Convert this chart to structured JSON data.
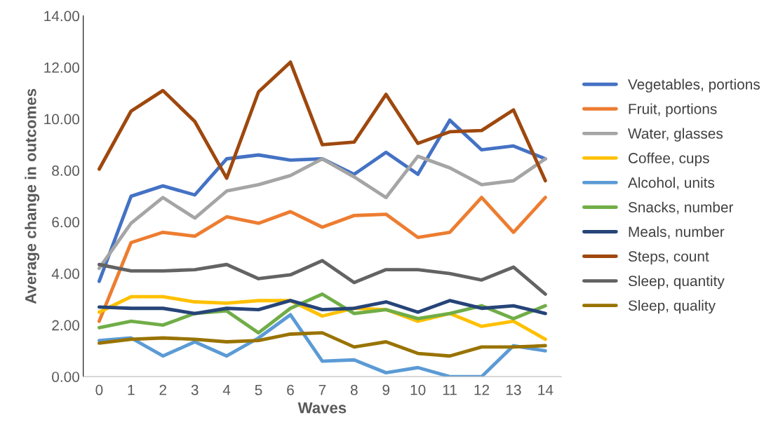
{
  "chart_data": {
    "type": "line",
    "xlabel": "Waves",
    "ylabel": "Average change in outcomes",
    "categories": [
      "0",
      "1",
      "2",
      "3",
      "4",
      "5",
      "6",
      "7",
      "8",
      "9",
      "10",
      "11",
      "12",
      "13",
      "14"
    ],
    "ylim": [
      0,
      14
    ],
    "yticks": [
      {
        "value": 0,
        "label": "0.00"
      },
      {
        "value": 2,
        "label": "2.00"
      },
      {
        "value": 4,
        "label": "4.00"
      },
      {
        "value": 6,
        "label": "6.00"
      },
      {
        "value": 8,
        "label": "8.00"
      },
      {
        "value": 10,
        "label": "10.00"
      },
      {
        "value": 12,
        "label": "12.00"
      },
      {
        "value": 14,
        "label": "14.00"
      }
    ],
    "legend": "right",
    "marker": "none",
    "line_style": "solid",
    "series": [
      {
        "name": "Vegetables, portions",
        "color": "#4472c4",
        "values": [
          3.7,
          7.0,
          7.4,
          7.05,
          8.45,
          8.6,
          8.4,
          8.45,
          7.85,
          8.7,
          7.85,
          9.95,
          8.8,
          8.95,
          8.45
        ]
      },
      {
        "name": "Fruit, portions",
        "color": "#ed7d31",
        "values": [
          2.15,
          5.2,
          5.6,
          5.45,
          6.2,
          5.95,
          6.4,
          5.8,
          6.25,
          6.3,
          5.4,
          5.6,
          6.95,
          5.6,
          6.95
        ]
      },
      {
        "name": "Water, glasses",
        "color": "#a5a5a5",
        "values": [
          4.2,
          5.95,
          6.95,
          6.15,
          7.2,
          7.45,
          7.8,
          8.45,
          7.75,
          6.95,
          8.55,
          8.1,
          7.45,
          7.6,
          8.45
        ]
      },
      {
        "name": "Coffee, cups",
        "color": "#ffc000",
        "values": [
          2.5,
          3.1,
          3.1,
          2.9,
          2.85,
          2.95,
          2.95,
          2.35,
          2.65,
          2.6,
          2.15,
          2.45,
          1.95,
          2.15,
          1.45
        ]
      },
      {
        "name": "Alcohol, units",
        "color": "#5b9bd5",
        "values": [
          1.4,
          1.5,
          0.8,
          1.35,
          0.8,
          1.5,
          2.4,
          0.6,
          0.65,
          0.15,
          0.35,
          0.0,
          0.0,
          1.2,
          1.0
        ]
      },
      {
        "name": "Snacks, number",
        "color": "#70ad47",
        "values": [
          1.9,
          2.15,
          2.0,
          2.45,
          2.55,
          1.7,
          2.65,
          3.2,
          2.45,
          2.6,
          2.25,
          2.45,
          2.75,
          2.25,
          2.75
        ]
      },
      {
        "name": "Meals, number",
        "color": "#264478",
        "values": [
          2.7,
          2.65,
          2.65,
          2.45,
          2.65,
          2.6,
          2.95,
          2.6,
          2.65,
          2.9,
          2.5,
          2.95,
          2.65,
          2.75,
          2.45
        ]
      },
      {
        "name": "Steps, count",
        "color": "#9e480e",
        "values": [
          8.05,
          10.3,
          11.1,
          9.9,
          7.7,
          11.05,
          12.2,
          9.0,
          9.1,
          10.95,
          9.05,
          9.5,
          9.55,
          10.35,
          7.6
        ]
      },
      {
        "name": "Sleep, quantity",
        "color": "#636363",
        "values": [
          4.35,
          4.1,
          4.1,
          4.15,
          4.35,
          3.8,
          3.95,
          4.5,
          3.65,
          4.15,
          4.15,
          4.0,
          3.75,
          4.25,
          3.2
        ]
      },
      {
        "name": "Sleep, quality",
        "color": "#997300",
        "values": [
          1.3,
          1.45,
          1.5,
          1.45,
          1.35,
          1.4,
          1.65,
          1.7,
          1.15,
          1.35,
          0.9,
          0.8,
          1.15,
          1.15,
          1.2
        ]
      }
    ]
  }
}
